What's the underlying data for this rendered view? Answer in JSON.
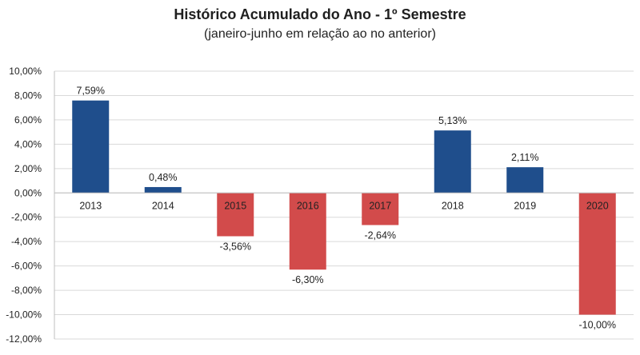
{
  "chart_data": {
    "type": "bar",
    "title": "Histórico Acumulado do Ano - 1º Semestre",
    "subtitle": "(janeiro-junho em relação ao no anterior)",
    "categories": [
      "2013",
      "2014",
      "2015",
      "2016",
      "2017",
      "2018",
      "2019",
      "2020"
    ],
    "values": [
      7.59,
      0.48,
      -3.56,
      -6.3,
      -2.64,
      5.13,
      2.11,
      -10.0
    ],
    "value_labels": [
      "7,59%",
      "0,48%",
      "-3,56%",
      "-6,30%",
      "-2,64%",
      "5,13%",
      "2,11%",
      "-10,00%"
    ],
    "ylim": [
      -12,
      10
    ],
    "y_ticks": [
      10,
      8,
      6,
      4,
      2,
      0,
      -2,
      -4,
      -6,
      -8,
      -10,
      -12
    ],
    "y_tick_labels": [
      "10,00%",
      "8,00%",
      "6,00%",
      "4,00%",
      "2,00%",
      "0,00%",
      "-2,00%",
      "-4,00%",
      "-6,00%",
      "-8,00%",
      "-10,00%",
      "-12,00%"
    ],
    "grid": true,
    "legend": "none",
    "colors": {
      "positive": "#1f4e8c",
      "negative": "#d24b4b",
      "grid": "#d9d9d9",
      "axis": "#bfbfbf"
    }
  }
}
